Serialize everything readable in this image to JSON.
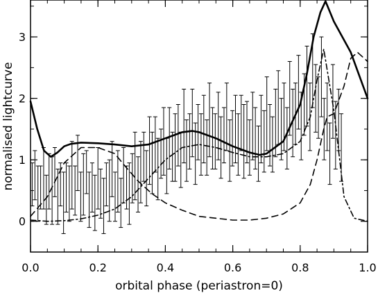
{
  "chart_data": {
    "type": "line",
    "xlabel": "orbital phase (periastron=0)",
    "ylabel": "normalised lightcurve",
    "xlim": [
      0.0,
      1.0
    ],
    "ylim": [
      -0.5,
      3.6
    ],
    "grid": false,
    "legend": "none",
    "x_ticks": [
      "0.0",
      "0.2",
      "0.4",
      "0.6",
      "0.8",
      "1.0"
    ],
    "y_ticks": [
      "0",
      "1",
      "2",
      "3"
    ],
    "series": [
      {
        "style": "solid",
        "x": [
          0.0,
          0.02,
          0.04,
          0.06,
          0.08,
          0.1,
          0.12,
          0.15,
          0.2,
          0.25,
          0.3,
          0.35,
          0.4,
          0.45,
          0.48,
          0.5,
          0.55,
          0.6,
          0.65,
          0.68,
          0.7,
          0.75,
          0.8,
          0.82,
          0.84,
          0.86,
          0.875,
          0.9,
          0.95,
          1.0
        ],
        "y": [
          1.95,
          1.5,
          1.15,
          1.05,
          1.12,
          1.22,
          1.26,
          1.28,
          1.27,
          1.25,
          1.22,
          1.25,
          1.35,
          1.45,
          1.47,
          1.45,
          1.35,
          1.22,
          1.12,
          1.08,
          1.1,
          1.3,
          1.9,
          2.4,
          3.0,
          3.4,
          3.58,
          3.25,
          2.75,
          2.0
        ]
      },
      {
        "style": "dashed",
        "x": [
          0.0,
          0.05,
          0.1,
          0.15,
          0.2,
          0.25,
          0.28,
          0.32,
          0.36,
          0.4,
          0.45,
          0.5,
          0.55,
          0.6,
          0.65,
          0.7,
          0.75,
          0.8,
          0.83,
          0.85,
          0.87,
          0.88,
          0.9,
          0.93,
          0.95,
          0.97,
          1.0
        ],
        "y": [
          0.08,
          0.4,
          0.95,
          1.2,
          1.2,
          1.1,
          0.9,
          0.65,
          0.45,
          0.3,
          0.18,
          0.08,
          0.05,
          0.02,
          0.02,
          0.05,
          0.12,
          0.3,
          0.6,
          1.0,
          1.5,
          1.7,
          1.75,
          2.2,
          2.65,
          2.75,
          2.6
        ]
      },
      {
        "style": "dash-dot",
        "x": [
          0.0,
          0.05,
          0.1,
          0.15,
          0.2,
          0.25,
          0.3,
          0.35,
          0.4,
          0.45,
          0.5,
          0.55,
          0.6,
          0.65,
          0.7,
          0.75,
          0.8,
          0.83,
          0.85,
          0.87,
          0.9,
          0.93,
          0.96,
          1.0
        ],
        "y": [
          0.02,
          0.0,
          0.01,
          0.04,
          0.1,
          0.2,
          0.4,
          0.7,
          1.0,
          1.2,
          1.25,
          1.2,
          1.12,
          1.05,
          1.05,
          1.1,
          1.3,
          1.7,
          2.3,
          2.8,
          1.8,
          0.4,
          0.05,
          0.0
        ]
      }
    ],
    "error_bars": {
      "x": [
        0.005,
        0.013,
        0.022,
        0.03,
        0.039,
        0.047,
        0.055,
        0.064,
        0.072,
        0.081,
        0.089,
        0.098,
        0.106,
        0.115,
        0.123,
        0.132,
        0.14,
        0.149,
        0.157,
        0.166,
        0.174,
        0.183,
        0.191,
        0.2,
        0.208,
        0.217,
        0.225,
        0.234,
        0.242,
        0.251,
        0.259,
        0.268,
        0.276,
        0.285,
        0.293,
        0.302,
        0.31,
        0.319,
        0.327,
        0.336,
        0.344,
        0.353,
        0.361,
        0.37,
        0.378,
        0.387,
        0.395,
        0.404,
        0.412,
        0.421,
        0.429,
        0.438,
        0.446,
        0.455,
        0.463,
        0.472,
        0.48,
        0.489,
        0.497,
        0.506,
        0.514,
        0.523,
        0.531,
        0.54,
        0.548,
        0.557,
        0.565,
        0.574,
        0.582,
        0.591,
        0.599,
        0.608,
        0.616,
        0.625,
        0.633,
        0.642,
        0.65,
        0.659,
        0.667,
        0.676,
        0.684,
        0.693,
        0.701,
        0.71,
        0.718,
        0.727,
        0.735,
        0.744,
        0.752,
        0.761,
        0.769,
        0.778,
        0.786,
        0.795,
        0.803,
        0.812,
        0.82,
        0.829,
        0.837,
        0.846,
        0.854,
        0.863,
        0.871,
        0.88,
        0.888,
        0.897,
        0.905,
        0.914,
        0.922
      ],
      "y": [
        0.6,
        0.75,
        0.45,
        0.55,
        0.7,
        0.35,
        0.65,
        0.5,
        0.8,
        0.4,
        0.6,
        0.3,
        0.55,
        0.45,
        0.75,
        0.5,
        0.95,
        0.4,
        0.6,
        0.8,
        0.35,
        0.55,
        0.3,
        0.7,
        0.45,
        0.25,
        0.6,
        0.5,
        0.85,
        0.4,
        0.65,
        0.3,
        0.75,
        0.55,
        0.45,
        0.7,
        0.9,
        0.6,
        0.8,
        1.05,
        0.7,
        1.15,
        0.95,
        1.25,
        0.85,
        1.1,
        1.3,
        0.9,
        1.35,
        1.05,
        1.2,
        1.4,
        1.0,
        1.55,
        1.15,
        1.3,
        1.6,
        1.1,
        1.45,
        1.25,
        1.5,
        1.2,
        1.65,
        1.35,
        1.3,
        1.55,
        1.2,
        1.4,
        1.7,
        1.15,
        1.35,
        1.5,
        1.25,
        1.6,
        1.3,
        1.45,
        1.2,
        1.55,
        1.35,
        1.1,
        1.5,
        1.3,
        1.75,
        1.4,
        1.25,
        1.6,
        1.85,
        1.5,
        1.7,
        1.35,
        2.0,
        1.6,
        1.75,
        2.1,
        1.55,
        1.9,
        2.2,
        1.7,
        2.45,
        2.0,
        1.85,
        2.35,
        1.5,
        1.7,
        1.1,
        1.95,
        1.4,
        1.65,
        1.2
      ],
      "err": [
        0.35,
        0.4,
        0.45,
        0.35,
        0.5,
        0.4,
        0.45,
        0.55,
        0.4,
        0.45,
        0.35,
        0.5,
        0.4,
        0.45,
        0.55,
        0.4,
        0.45,
        0.4,
        0.5,
        0.35,
        0.45,
        0.4,
        0.45,
        0.5,
        0.4,
        0.45,
        0.35,
        0.5,
        0.45,
        0.4,
        0.5,
        0.4,
        0.45,
        0.35,
        0.5,
        0.4,
        0.55,
        0.45,
        0.5,
        0.4,
        0.45,
        0.55,
        0.5,
        0.45,
        0.5,
        0.4,
        0.55,
        0.45,
        0.5,
        0.4,
        0.55,
        0.5,
        0.45,
        0.6,
        0.5,
        0.45,
        0.55,
        0.5,
        0.45,
        0.5,
        0.55,
        0.45,
        0.6,
        0.5,
        0.45,
        0.55,
        0.5,
        0.45,
        0.55,
        0.5,
        0.45,
        0.55,
        0.5,
        0.45,
        0.6,
        0.5,
        0.45,
        0.55,
        0.5,
        0.45,
        0.55,
        0.5,
        0.6,
        0.5,
        0.45,
        0.55,
        0.6,
        0.5,
        0.55,
        0.5,
        0.6,
        0.55,
        0.5,
        0.6,
        0.55,
        0.5,
        0.65,
        0.55,
        0.6,
        0.55,
        0.5,
        0.65,
        0.5,
        0.55,
        0.5,
        0.6,
        0.55,
        0.5,
        0.55
      ]
    }
  }
}
